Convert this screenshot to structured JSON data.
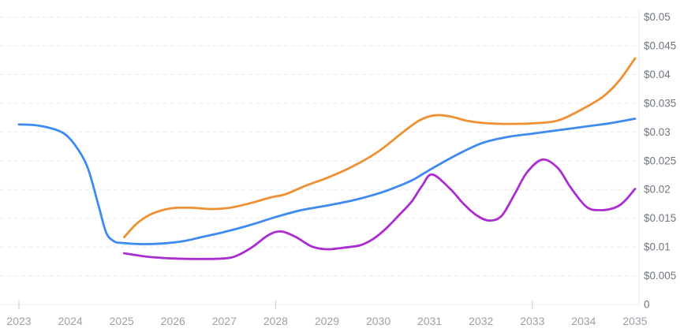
{
  "chart_data": {
    "type": "line",
    "title": "",
    "legend": "none",
    "grid": "horizontal-dashed",
    "x_axis": {
      "range": [
        2023,
        2035
      ],
      "tick_labels": [
        "2023",
        "2024",
        "2025",
        "2026",
        "2027",
        "2028",
        "2029",
        "2030",
        "2031",
        "2032",
        "2033",
        "2034",
        "2035"
      ],
      "major_tick_marks": [
        2023,
        2028,
        2033
      ]
    },
    "y_axis": {
      "side": "right",
      "range": [
        0,
        0.05
      ],
      "unit": "$",
      "ticks": [
        {
          "value": 0.05,
          "label": "$0.05"
        },
        {
          "value": 0.045,
          "label": "$0.045"
        },
        {
          "value": 0.04,
          "label": "$0.04"
        },
        {
          "value": 0.035,
          "label": "$0.035"
        },
        {
          "value": 0.03,
          "label": "$0.03"
        },
        {
          "value": 0.025,
          "label": "$0.025"
        },
        {
          "value": 0.02,
          "label": "$0.02"
        },
        {
          "value": 0.015,
          "label": "$0.015"
        },
        {
          "value": 0.01,
          "label": "$0.01"
        },
        {
          "value": 0.005,
          "label": "$0.005"
        },
        {
          "value": 0,
          "label": "0"
        }
      ]
    },
    "series": [
      {
        "name": "blue-line",
        "color": "#3d8bf0",
        "points": [
          [
            2023.0,
            0.0313
          ],
          [
            2023.3,
            0.0312
          ],
          [
            2023.6,
            0.0307
          ],
          [
            2023.9,
            0.0296
          ],
          [
            2024.15,
            0.027
          ],
          [
            2024.35,
            0.0235
          ],
          [
            2024.55,
            0.0172
          ],
          [
            2024.7,
            0.0125
          ],
          [
            2024.85,
            0.011
          ],
          [
            2025.0,
            0.0107
          ],
          [
            2025.4,
            0.0105
          ],
          [
            2025.8,
            0.0106
          ],
          [
            2026.2,
            0.011
          ],
          [
            2026.6,
            0.0118
          ],
          [
            2027.0,
            0.0126
          ],
          [
            2027.5,
            0.0138
          ],
          [
            2028.0,
            0.0152
          ],
          [
            2028.5,
            0.0164
          ],
          [
            2029.0,
            0.0172
          ],
          [
            2029.5,
            0.0181
          ],
          [
            2030.0,
            0.0193
          ],
          [
            2030.4,
            0.0206
          ],
          [
            2030.7,
            0.0218
          ],
          [
            2031.0,
            0.0234
          ],
          [
            2031.5,
            0.0259
          ],
          [
            2032.0,
            0.028
          ],
          [
            2032.5,
            0.0291
          ],
          [
            2033.0,
            0.0297
          ],
          [
            2033.5,
            0.0303
          ],
          [
            2034.0,
            0.0309
          ],
          [
            2034.5,
            0.0315
          ],
          [
            2035.0,
            0.0323
          ]
        ]
      },
      {
        "name": "orange-line",
        "color": "#ef9033",
        "points": [
          [
            2025.05,
            0.0117
          ],
          [
            2025.3,
            0.0141
          ],
          [
            2025.55,
            0.0156
          ],
          [
            2025.8,
            0.0164
          ],
          [
            2026.05,
            0.0168
          ],
          [
            2026.4,
            0.0168
          ],
          [
            2026.75,
            0.0166
          ],
          [
            2027.1,
            0.0168
          ],
          [
            2027.5,
            0.0176
          ],
          [
            2027.9,
            0.0186
          ],
          [
            2028.2,
            0.0192
          ],
          [
            2028.6,
            0.0207
          ],
          [
            2029.0,
            0.022
          ],
          [
            2029.5,
            0.024
          ],
          [
            2030.0,
            0.0266
          ],
          [
            2030.5,
            0.0301
          ],
          [
            2030.8,
            0.032
          ],
          [
            2031.1,
            0.0329
          ],
          [
            2031.4,
            0.0327
          ],
          [
            2031.7,
            0.032
          ],
          [
            2032.0,
            0.0316
          ],
          [
            2032.5,
            0.0314
          ],
          [
            2033.0,
            0.0315
          ],
          [
            2033.5,
            0.032
          ],
          [
            2034.0,
            0.0341
          ],
          [
            2034.4,
            0.0363
          ],
          [
            2034.7,
            0.039
          ],
          [
            2035.0,
            0.0428
          ]
        ]
      },
      {
        "name": "purple-line",
        "color": "#aa2dd2",
        "points": [
          [
            2025.05,
            0.0089
          ],
          [
            2025.5,
            0.0083
          ],
          [
            2026.0,
            0.008
          ],
          [
            2026.5,
            0.0079
          ],
          [
            2027.0,
            0.008
          ],
          [
            2027.25,
            0.0085
          ],
          [
            2027.55,
            0.01
          ],
          [
            2027.85,
            0.012
          ],
          [
            2028.1,
            0.0127
          ],
          [
            2028.4,
            0.0117
          ],
          [
            2028.7,
            0.0101
          ],
          [
            2029.0,
            0.0096
          ],
          [
            2029.35,
            0.0099
          ],
          [
            2029.65,
            0.0103
          ],
          [
            2029.9,
            0.0114
          ],
          [
            2030.15,
            0.0132
          ],
          [
            2030.4,
            0.0155
          ],
          [
            2030.65,
            0.0179
          ],
          [
            2030.85,
            0.0206
          ],
          [
            2031.05,
            0.0226
          ],
          [
            2031.4,
            0.0201
          ],
          [
            2031.65,
            0.0176
          ],
          [
            2031.9,
            0.0156
          ],
          [
            2032.15,
            0.0146
          ],
          [
            2032.4,
            0.0154
          ],
          [
            2032.65,
            0.0191
          ],
          [
            2032.9,
            0.023
          ],
          [
            2033.2,
            0.0252
          ],
          [
            2033.5,
            0.0237
          ],
          [
            2033.75,
            0.0203
          ],
          [
            2034.05,
            0.017
          ],
          [
            2034.3,
            0.0164
          ],
          [
            2034.6,
            0.0168
          ],
          [
            2034.8,
            0.018
          ],
          [
            2035.0,
            0.0201
          ]
        ]
      }
    ]
  },
  "colors": {
    "background": "#ffffff",
    "gridline": "#ebebed",
    "axis_line": "#e2e4e6",
    "baseline": "#ededee",
    "tick_mark": "#c9ccd0",
    "y_label": "#6f767e",
    "x_label": "#9aa1a8"
  }
}
